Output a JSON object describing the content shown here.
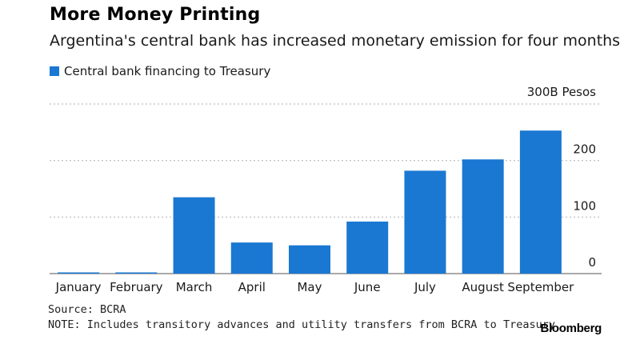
{
  "colors": {
    "bar": "#1a78d2",
    "grid": "#bdbdbd",
    "axis": "#555555"
  },
  "footer": {
    "source": "Source: BCRA",
    "note": "NOTE: Includes transitory advances and utility transfers from BCRA to Treasury",
    "brand": "Bloomberg"
  },
  "chart_data": {
    "type": "bar",
    "title": "More Money Printing",
    "subtitle": "Argentina's central bank has increased monetary emission for four months",
    "legend": {
      "position": "top-left",
      "entries": [
        "Central bank financing to Treasury"
      ]
    },
    "categories": [
      "January",
      "February",
      "March",
      "April",
      "May",
      "June",
      "July",
      "August",
      "September"
    ],
    "series": [
      {
        "name": "Central bank financing to Treasury",
        "values": [
          0,
          0,
          135,
          55,
          50,
          92,
          182,
          202,
          253
        ]
      }
    ],
    "ylim": [
      0,
      300
    ],
    "yticks": [
      0,
      100,
      200,
      300
    ],
    "ytick_labels": [
      "0",
      "100",
      "200",
      "300B Pesos"
    ],
    "y_axis_side": "right",
    "grid": "horizontal dotted"
  }
}
